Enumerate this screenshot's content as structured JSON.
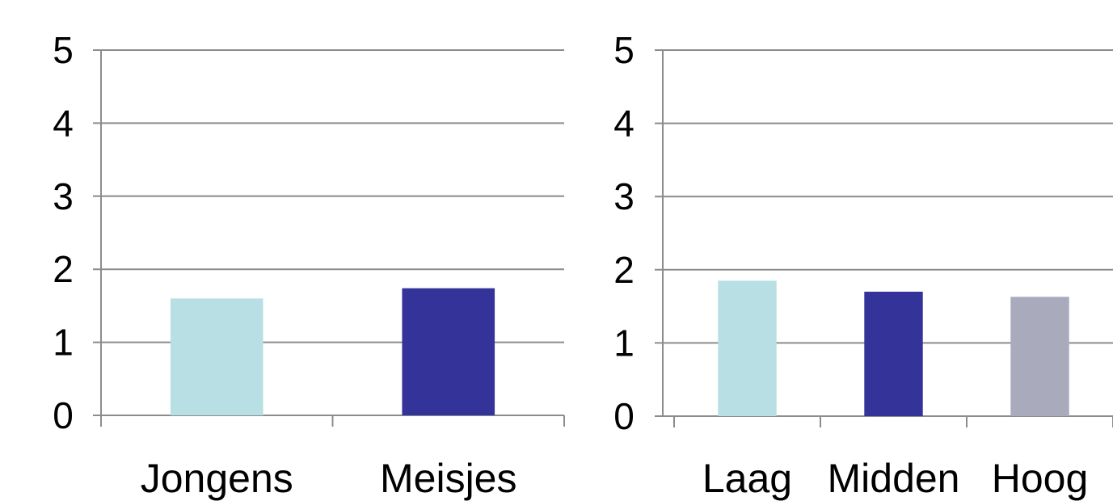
{
  "chart_data": [
    {
      "type": "bar",
      "categories": [
        "Jongens",
        "Meisjes"
      ],
      "values": [
        1.6,
        1.74
      ],
      "colors": [
        "#b8dfe3",
        "#343399"
      ],
      "ylim": [
        0,
        5
      ],
      "yticks": [
        "0",
        "1",
        "2",
        "3",
        "4",
        "5"
      ],
      "grid": true,
      "title": "",
      "xlabel": "",
      "ylabel": ""
    },
    {
      "type": "bar",
      "categories": [
        "Laag",
        "Midden",
        "Hoog"
      ],
      "values": [
        1.85,
        1.7,
        1.63
      ],
      "colors": [
        "#b8dfe3",
        "#343399",
        "#a9abbd"
      ],
      "ylim": [
        0,
        5
      ],
      "yticks": [
        "0",
        "1",
        "2",
        "3",
        "4",
        "5"
      ],
      "grid": true,
      "title": "",
      "xlabel": "",
      "ylabel": ""
    }
  ]
}
